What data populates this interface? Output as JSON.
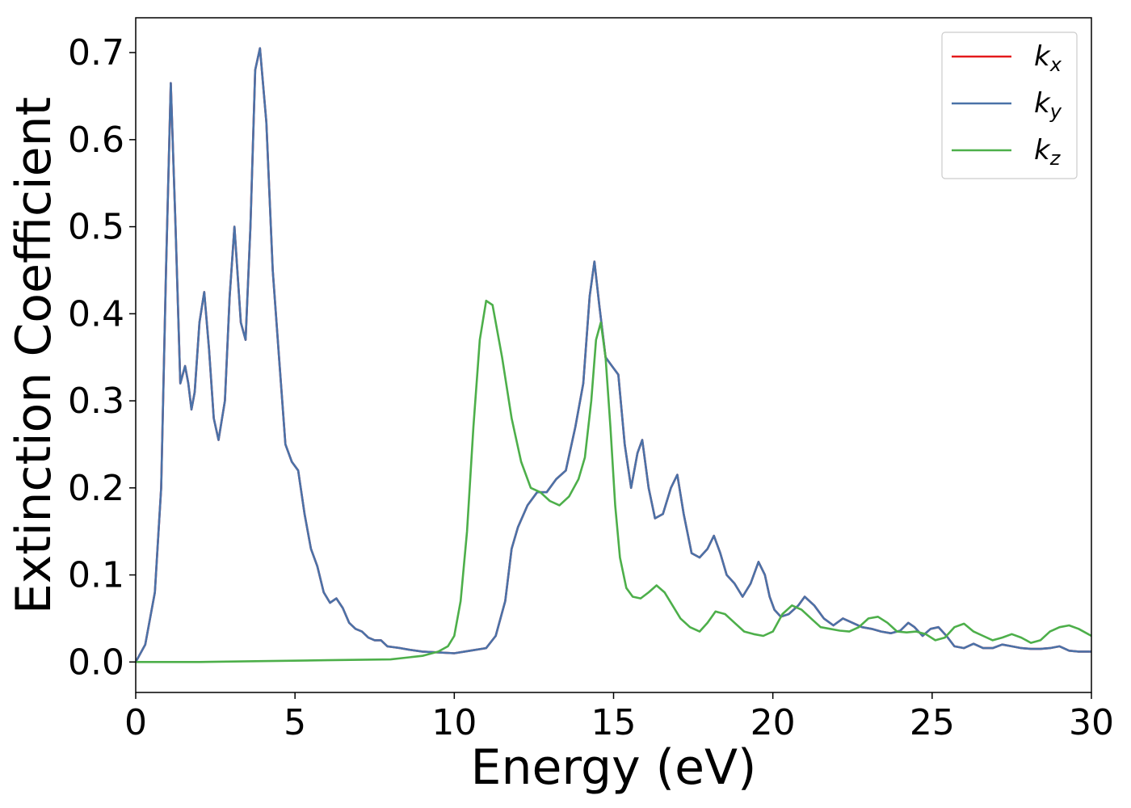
{
  "chart_data": {
    "type": "line",
    "xlabel": "Energy (eV)",
    "ylabel": "Extinction Coefficient",
    "xlim": [
      0,
      30
    ],
    "ylim": [
      -0.035,
      0.74
    ],
    "xticks": [
      0,
      5,
      10,
      15,
      20,
      25,
      30
    ],
    "xtick_labels": [
      "0",
      "5",
      "10",
      "15",
      "20",
      "25",
      "30"
    ],
    "yticks": [
      0.0,
      0.1,
      0.2,
      0.3,
      0.4,
      0.5,
      0.6,
      0.7
    ],
    "ytick_labels": [
      "0.0",
      "0.1",
      "0.2",
      "0.3",
      "0.4",
      "0.5",
      "0.6",
      "0.7"
    ],
    "grid": false,
    "legend_position": "top-right",
    "series": [
      {
        "name": "k",
        "subscript": "x",
        "color": "#e41a1c",
        "x": [
          0,
          0.3,
          0.6,
          0.8,
          0.95,
          1.1,
          1.25,
          1.4,
          1.55,
          1.65,
          1.75,
          1.85,
          2.0,
          2.15,
          2.3,
          2.45,
          2.6,
          2.8,
          2.95,
          3.1,
          3.3,
          3.45,
          3.6,
          3.75,
          3.9,
          4.1,
          4.3,
          4.5,
          4.7,
          4.9,
          5.1,
          5.3,
          5.5,
          5.7,
          5.9,
          6.1,
          6.3,
          6.5,
          6.7,
          6.9,
          7.1,
          7.3,
          7.5,
          7.7,
          7.9,
          8.1,
          8.3,
          8.6,
          9.0,
          9.5,
          10.0,
          10.5,
          11.0,
          11.3,
          11.6,
          11.8,
          12.0,
          12.3,
          12.6,
          12.9,
          13.2,
          13.5,
          13.8,
          14.05,
          14.25,
          14.4,
          14.55,
          14.75,
          14.95,
          15.15,
          15.35,
          15.55,
          15.75,
          15.9,
          16.1,
          16.3,
          16.55,
          16.8,
          17.0,
          17.2,
          17.45,
          17.7,
          17.95,
          18.15,
          18.35,
          18.55,
          18.8,
          19.05,
          19.3,
          19.55,
          19.75,
          19.9,
          20.05,
          20.25,
          20.5,
          20.8,
          21.0,
          21.3,
          21.6,
          21.9,
          22.2,
          22.5,
          22.8,
          23.1,
          23.4,
          23.7,
          24.0,
          24.25,
          24.45,
          24.7,
          24.95,
          25.2,
          25.45,
          25.7,
          26.0,
          26.3,
          26.6,
          26.9,
          27.2,
          27.5,
          27.8,
          28.1,
          28.4,
          28.7,
          29.0,
          29.3,
          29.6,
          30.0
        ],
        "values": [
          0.0,
          0.02,
          0.08,
          0.2,
          0.45,
          0.665,
          0.5,
          0.32,
          0.34,
          0.32,
          0.29,
          0.31,
          0.39,
          0.425,
          0.36,
          0.28,
          0.255,
          0.3,
          0.42,
          0.5,
          0.39,
          0.37,
          0.5,
          0.68,
          0.705,
          0.62,
          0.45,
          0.35,
          0.25,
          0.23,
          0.22,
          0.17,
          0.13,
          0.11,
          0.08,
          0.068,
          0.073,
          0.062,
          0.045,
          0.038,
          0.035,
          0.028,
          0.025,
          0.025,
          0.018,
          0.017,
          0.016,
          0.014,
          0.012,
          0.011,
          0.01,
          0.013,
          0.016,
          0.03,
          0.07,
          0.13,
          0.155,
          0.18,
          0.195,
          0.195,
          0.21,
          0.22,
          0.27,
          0.32,
          0.42,
          0.46,
          0.41,
          0.35,
          0.34,
          0.33,
          0.25,
          0.2,
          0.24,
          0.255,
          0.2,
          0.165,
          0.17,
          0.2,
          0.215,
          0.17,
          0.125,
          0.12,
          0.13,
          0.145,
          0.125,
          0.1,
          0.09,
          0.075,
          0.09,
          0.115,
          0.1,
          0.075,
          0.06,
          0.052,
          0.055,
          0.065,
          0.075,
          0.065,
          0.05,
          0.042,
          0.05,
          0.045,
          0.04,
          0.038,
          0.035,
          0.033,
          0.036,
          0.045,
          0.04,
          0.03,
          0.038,
          0.04,
          0.03,
          0.018,
          0.016,
          0.021,
          0.016,
          0.016,
          0.02,
          0.018,
          0.016,
          0.015,
          0.015,
          0.016,
          0.018,
          0.013,
          0.012,
          0.012
        ]
      },
      {
        "name": "k",
        "subscript": "y",
        "color": "#4a72a8",
        "x": [
          0,
          0.3,
          0.6,
          0.8,
          0.95,
          1.1,
          1.25,
          1.4,
          1.55,
          1.65,
          1.75,
          1.85,
          2.0,
          2.15,
          2.3,
          2.45,
          2.6,
          2.8,
          2.95,
          3.1,
          3.3,
          3.45,
          3.6,
          3.75,
          3.9,
          4.1,
          4.3,
          4.5,
          4.7,
          4.9,
          5.1,
          5.3,
          5.5,
          5.7,
          5.9,
          6.1,
          6.3,
          6.5,
          6.7,
          6.9,
          7.1,
          7.3,
          7.5,
          7.7,
          7.9,
          8.1,
          8.3,
          8.6,
          9.0,
          9.5,
          10.0,
          10.5,
          11.0,
          11.3,
          11.6,
          11.8,
          12.0,
          12.3,
          12.6,
          12.9,
          13.2,
          13.5,
          13.8,
          14.05,
          14.25,
          14.4,
          14.55,
          14.75,
          14.95,
          15.15,
          15.35,
          15.55,
          15.75,
          15.9,
          16.1,
          16.3,
          16.55,
          16.8,
          17.0,
          17.2,
          17.45,
          17.7,
          17.95,
          18.15,
          18.35,
          18.55,
          18.8,
          19.05,
          19.3,
          19.55,
          19.75,
          19.9,
          20.05,
          20.25,
          20.5,
          20.8,
          21.0,
          21.3,
          21.6,
          21.9,
          22.2,
          22.5,
          22.8,
          23.1,
          23.4,
          23.7,
          24.0,
          24.25,
          24.45,
          24.7,
          24.95,
          25.2,
          25.45,
          25.7,
          26.0,
          26.3,
          26.6,
          26.9,
          27.2,
          27.5,
          27.8,
          28.1,
          28.4,
          28.7,
          29.0,
          29.3,
          29.6,
          30.0
        ],
        "values": [
          0.0,
          0.02,
          0.08,
          0.2,
          0.45,
          0.665,
          0.5,
          0.32,
          0.34,
          0.32,
          0.29,
          0.31,
          0.39,
          0.425,
          0.36,
          0.28,
          0.255,
          0.3,
          0.42,
          0.5,
          0.39,
          0.37,
          0.5,
          0.68,
          0.705,
          0.62,
          0.45,
          0.35,
          0.25,
          0.23,
          0.22,
          0.17,
          0.13,
          0.11,
          0.08,
          0.068,
          0.073,
          0.062,
          0.045,
          0.038,
          0.035,
          0.028,
          0.025,
          0.025,
          0.018,
          0.017,
          0.016,
          0.014,
          0.012,
          0.011,
          0.01,
          0.013,
          0.016,
          0.03,
          0.07,
          0.13,
          0.155,
          0.18,
          0.195,
          0.195,
          0.21,
          0.22,
          0.27,
          0.32,
          0.42,
          0.46,
          0.41,
          0.35,
          0.34,
          0.33,
          0.25,
          0.2,
          0.24,
          0.255,
          0.2,
          0.165,
          0.17,
          0.2,
          0.215,
          0.17,
          0.125,
          0.12,
          0.13,
          0.145,
          0.125,
          0.1,
          0.09,
          0.075,
          0.09,
          0.115,
          0.1,
          0.075,
          0.06,
          0.052,
          0.055,
          0.065,
          0.075,
          0.065,
          0.05,
          0.042,
          0.05,
          0.045,
          0.04,
          0.038,
          0.035,
          0.033,
          0.036,
          0.045,
          0.04,
          0.03,
          0.038,
          0.04,
          0.03,
          0.018,
          0.016,
          0.021,
          0.016,
          0.016,
          0.02,
          0.018,
          0.016,
          0.015,
          0.015,
          0.016,
          0.018,
          0.013,
          0.012,
          0.012
        ]
      },
      {
        "name": "k",
        "subscript": "z",
        "color": "#4daf4a",
        "x": [
          0,
          2,
          4,
          6,
          8,
          9,
          9.5,
          9.8,
          10.0,
          10.2,
          10.4,
          10.6,
          10.8,
          11.0,
          11.2,
          11.5,
          11.8,
          12.1,
          12.4,
          12.7,
          13.0,
          13.3,
          13.6,
          13.9,
          14.1,
          14.3,
          14.45,
          14.6,
          14.75,
          14.9,
          15.05,
          15.2,
          15.4,
          15.6,
          15.85,
          16.1,
          16.35,
          16.6,
          16.85,
          17.1,
          17.4,
          17.7,
          17.95,
          18.2,
          18.5,
          18.8,
          19.1,
          19.4,
          19.7,
          20.0,
          20.3,
          20.6,
          20.9,
          21.2,
          21.5,
          21.8,
          22.1,
          22.4,
          22.7,
          23.0,
          23.3,
          23.6,
          23.9,
          24.2,
          24.5,
          24.8,
          25.1,
          25.4,
          25.7,
          26.0,
          26.3,
          26.6,
          26.9,
          27.2,
          27.5,
          27.8,
          28.1,
          28.4,
          28.7,
          29.0,
          29.3,
          29.6,
          30.0
        ],
        "values": [
          0.0,
          0.0,
          0.001,
          0.002,
          0.003,
          0.007,
          0.012,
          0.018,
          0.03,
          0.07,
          0.15,
          0.27,
          0.37,
          0.415,
          0.41,
          0.35,
          0.28,
          0.23,
          0.2,
          0.195,
          0.185,
          0.18,
          0.19,
          0.21,
          0.235,
          0.3,
          0.37,
          0.39,
          0.35,
          0.27,
          0.18,
          0.12,
          0.085,
          0.075,
          0.073,
          0.08,
          0.088,
          0.08,
          0.065,
          0.05,
          0.04,
          0.035,
          0.045,
          0.058,
          0.055,
          0.045,
          0.035,
          0.032,
          0.03,
          0.035,
          0.055,
          0.065,
          0.06,
          0.05,
          0.04,
          0.038,
          0.036,
          0.035,
          0.04,
          0.05,
          0.052,
          0.045,
          0.035,
          0.034,
          0.035,
          0.032,
          0.025,
          0.028,
          0.04,
          0.044,
          0.035,
          0.03,
          0.025,
          0.028,
          0.032,
          0.028,
          0.022,
          0.025,
          0.035,
          0.04,
          0.042,
          0.038,
          0.03
        ]
      }
    ]
  }
}
